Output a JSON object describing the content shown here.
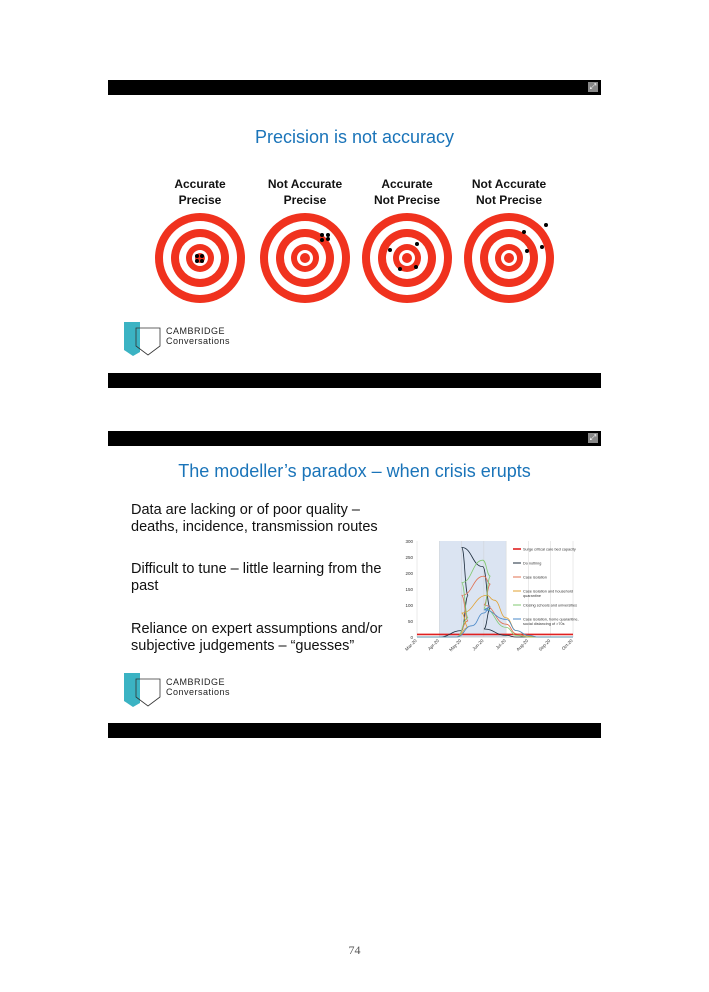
{
  "slide1": {
    "title": "Precision is not accuracy",
    "targets": [
      {
        "line1": "Accurate",
        "line2": "Precise"
      },
      {
        "line1": "Not Accurate",
        "line2": "Precise"
      },
      {
        "line1": "Accurate",
        "line2": "Not Precise"
      },
      {
        "line1": "Not Accurate",
        "line2": "Not Precise"
      }
    ],
    "target_colors": {
      "ring": "#f0321e",
      "gap": "#ffffff",
      "hit": "#000000"
    }
  },
  "slide2": {
    "title": "The modeller’s paradox – when crisis erupts",
    "bullets": [
      {
        "line1": "Data are lacking or of poor quality –",
        "line2": "deaths, incidence, transmission routes"
      },
      {
        "line1": "Difficult to tune – little learning from the",
        "line2": "past"
      },
      {
        "line1": "Reliance on expert assumptions and/or",
        "line2": "subjective judgements – “guesses”"
      }
    ]
  },
  "logo": {
    "line1": "CAMBRIDGE",
    "line2": "Conversations",
    "color": "#3bb3c3"
  },
  "title_color": "#1a74b9",
  "page_number": "74",
  "chart_data": {
    "type": "line",
    "title": "",
    "xlabel": "",
    "ylabel": "",
    "ylim": [
      0,
      300
    ],
    "yticks": [
      "0",
      "50",
      "100",
      "150",
      "200",
      "250",
      "300"
    ],
    "xticks": [
      "Mar-20",
      "Apr-20",
      "May-20",
      "Jun-20",
      "Jul-20",
      "Aug-20",
      "Sep-20",
      "Oct-20"
    ],
    "grid": "vertical",
    "legend": "right",
    "shaded_region": [
      "Apr-20",
      "Jul-20"
    ],
    "series": [
      {
        "name": "Surge critical care bed capacity",
        "color": "#e02020",
        "points": [
          [
            "Mar-20",
            8
          ],
          [
            "Oct-20",
            8
          ]
        ]
      },
      {
        "name": "Do nothing",
        "color": "#1a2a3a",
        "points": [
          [
            "Mar-20",
            0
          ],
          [
            "Apr-20",
            0
          ],
          [
            "May-01",
            20
          ],
          [
            "May-10",
            130
          ],
          [
            "May-20",
            280
          ],
          [
            "May-30",
            220
          ],
          [
            "Jun-10",
            90
          ],
          [
            "Jun-20",
            25
          ],
          [
            "Jul-01",
            5
          ],
          [
            "Jul-15",
            0
          ],
          [
            "Oct-20",
            0
          ]
        ]
      },
      {
        "name": "Case isolation",
        "color": "#e07050",
        "points": [
          [
            "Mar-20",
            0
          ],
          [
            "Apr-25",
            0
          ],
          [
            "May-10",
            50
          ],
          [
            "May-20",
            130
          ],
          [
            "Jun-01",
            190
          ],
          [
            "Jun-10",
            165
          ],
          [
            "Jun-20",
            100
          ],
          [
            "Jul-01",
            40
          ],
          [
            "Jul-15",
            10
          ],
          [
            "Aug-01",
            0
          ],
          [
            "Oct-20",
            0
          ]
        ]
      },
      {
        "name": "Case isolation and household quarantine",
        "color": "#e0a030",
        "points": [
          [
            "Mar-20",
            0
          ],
          [
            "Apr-25",
            0
          ],
          [
            "May-10",
            30
          ],
          [
            "May-20",
            75
          ],
          [
            "Jun-05",
            130
          ],
          [
            "Jun-15",
            115
          ],
          [
            "Jul-01",
            60
          ],
          [
            "Jul-15",
            20
          ],
          [
            "Aug-01",
            3
          ],
          [
            "Aug-15",
            0
          ],
          [
            "Oct-20",
            0
          ]
        ]
      },
      {
        "name": "Closing schools and universities",
        "color": "#80c870",
        "points": [
          [
            "Mar-20",
            0
          ],
          [
            "Apr-25",
            0
          ],
          [
            "May-10",
            60
          ],
          [
            "May-20",
            170
          ],
          [
            "May-30",
            240
          ],
          [
            "Jun-10",
            190
          ],
          [
            "Jun-20",
            90
          ],
          [
            "Jul-01",
            30
          ],
          [
            "Jul-15",
            5
          ],
          [
            "Aug-01",
            0
          ],
          [
            "Oct-20",
            0
          ]
        ]
      },
      {
        "name": "Case isolation, home quarantine, social distancing of >70s",
        "color": "#4a88c8",
        "points": [
          [
            "Mar-20",
            0
          ],
          [
            "Apr-25",
            0
          ],
          [
            "May-15",
            35
          ],
          [
            "Jun-01",
            75
          ],
          [
            "Jun-10",
            95
          ],
          [
            "Jun-20",
            85
          ],
          [
            "Jul-01",
            55
          ],
          [
            "Jul-15",
            20
          ],
          [
            "Aug-01",
            5
          ],
          [
            "Aug-15",
            0
          ],
          [
            "Oct-20",
            0
          ]
        ]
      }
    ]
  }
}
